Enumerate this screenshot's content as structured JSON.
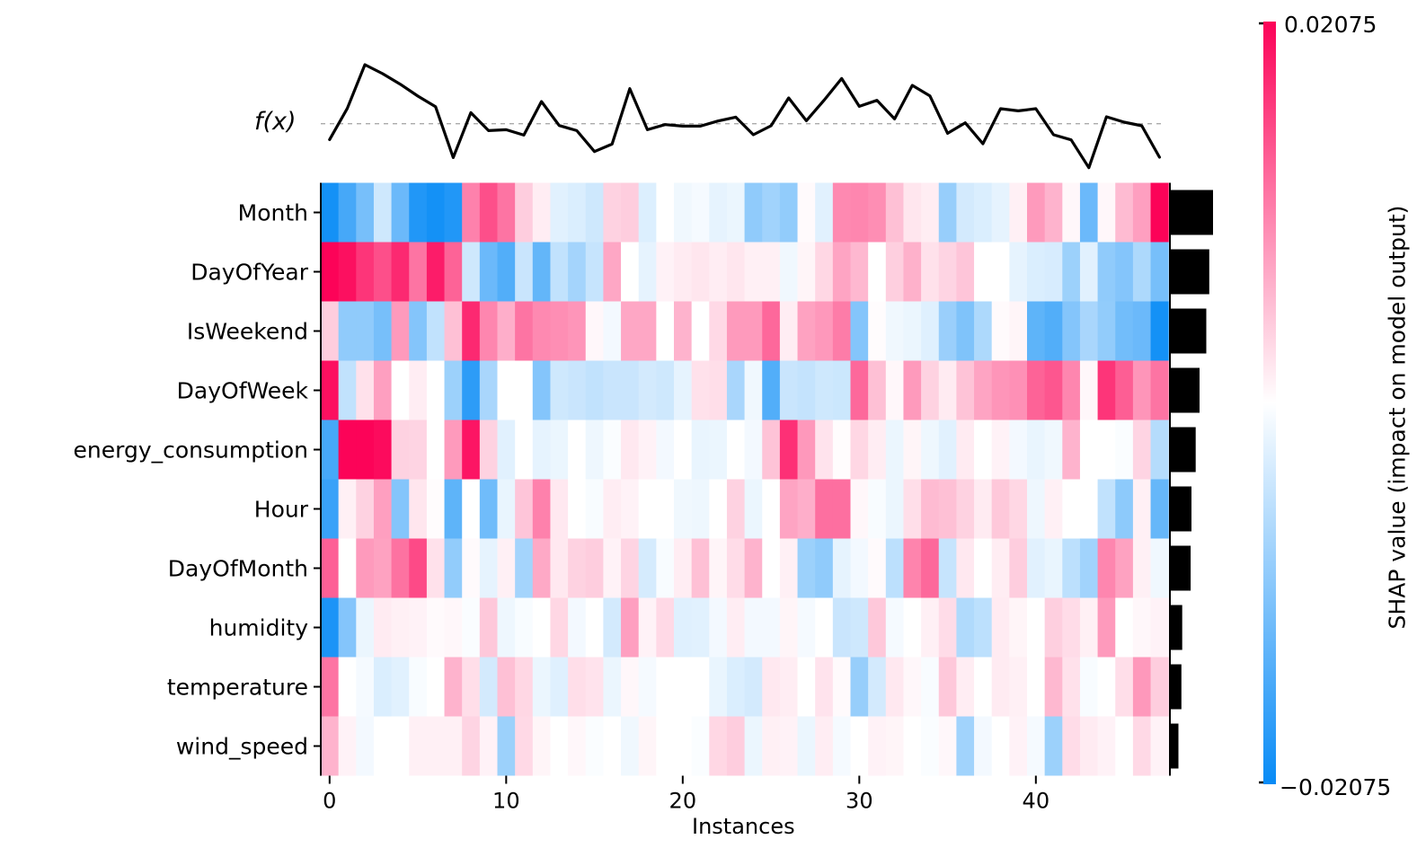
{
  "chart_data": {
    "type": "heatmap",
    "title": "",
    "xlabel": "Instances",
    "x_ticks": [
      0,
      10,
      20,
      30,
      40
    ],
    "n_instances": 48,
    "features": [
      "Month",
      "DayOfYear",
      "IsWeekend",
      "DayOfWeek",
      "energy_consumption",
      "Hour",
      "DayOfMonth",
      "humidity",
      "temperature",
      "wind_speed"
    ],
    "vmin": -0.02075,
    "vmax": 0.02075,
    "values_note": "cell SHAP value = normalized value x vmax (0.02075); colors: positive=pink/red, negative=blue",
    "values_normalized": [
      [
        -0.95,
        -0.75,
        -0.55,
        -0.2,
        -0.6,
        -0.9,
        -0.95,
        -0.9,
        0.5,
        0.7,
        0.55,
        0.2,
        0.07,
        -0.12,
        -0.15,
        -0.2,
        0.18,
        0.2,
        -0.14,
        0.0,
        -0.06,
        -0.04,
        -0.1,
        -0.08,
        -0.45,
        -0.38,
        -0.44,
        0.02,
        -0.12,
        0.47,
        0.48,
        0.45,
        0.25,
        0.1,
        0.07,
        -0.42,
        -0.18,
        -0.15,
        -0.1,
        0.06,
        0.4,
        0.3,
        0.03,
        -0.6,
        0.03,
        0.27,
        0.38,
        1.0
      ],
      [
        1.0,
        0.95,
        0.8,
        0.7,
        0.85,
        0.55,
        0.9,
        0.62,
        -0.2,
        -0.6,
        -0.7,
        -0.22,
        -0.63,
        -0.25,
        -0.37,
        -0.23,
        0.35,
        0.0,
        -0.1,
        0.05,
        0.08,
        0.1,
        0.07,
        0.1,
        0.06,
        0.06,
        -0.06,
        0.04,
        0.16,
        0.36,
        0.28,
        0.0,
        0.19,
        0.31,
        0.12,
        0.17,
        0.23,
        0.0,
        0.0,
        -0.1,
        -0.15,
        -0.16,
        -0.4,
        -0.12,
        -0.45,
        -0.5,
        -0.33,
        -0.55
      ],
      [
        0.2,
        -0.45,
        -0.45,
        -0.55,
        0.4,
        -0.5,
        -0.25,
        0.25,
        0.85,
        0.48,
        0.32,
        0.55,
        0.47,
        0.45,
        0.42,
        0.03,
        -0.05,
        0.35,
        0.35,
        0.0,
        0.3,
        0.0,
        0.15,
        0.4,
        0.4,
        0.6,
        0.07,
        0.37,
        0.41,
        0.52,
        -0.5,
        0.01,
        -0.06,
        -0.08,
        -0.13,
        -0.41,
        -0.52,
        -0.33,
        0.02,
        0.04,
        -0.65,
        -0.7,
        -0.5,
        -0.35,
        -0.44,
        -0.57,
        -0.6,
        -0.95
      ],
      [
        0.95,
        -0.25,
        0.12,
        0.38,
        0.0,
        0.07,
        0.0,
        -0.4,
        -0.85,
        -0.35,
        0.0,
        0.0,
        -0.5,
        -0.2,
        -0.22,
        -0.25,
        -0.22,
        -0.22,
        -0.18,
        -0.2,
        -0.1,
        0.12,
        0.13,
        -0.35,
        -0.06,
        -0.7,
        -0.22,
        -0.24,
        -0.2,
        -0.21,
        0.6,
        0.25,
        0.03,
        0.4,
        0.18,
        0.08,
        0.24,
        0.36,
        0.42,
        0.44,
        0.62,
        0.67,
        0.48,
        0.03,
        0.8,
        0.64,
        0.42,
        0.55
      ],
      [
        -0.75,
        1.0,
        1.0,
        0.97,
        0.18,
        0.17,
        0.0,
        0.4,
        0.93,
        0.18,
        -0.12,
        0.0,
        -0.1,
        -0.08,
        0.0,
        -0.07,
        -0.02,
        0.09,
        0.05,
        -0.05,
        0.0,
        -0.09,
        -0.08,
        0.0,
        -0.05,
        0.24,
        0.82,
        0.41,
        0.11,
        0.01,
        0.16,
        0.07,
        -0.08,
        0.04,
        -0.07,
        -0.12,
        0.08,
        0.0,
        0.05,
        -0.05,
        -0.09,
        -0.06,
        0.3,
        0.0,
        0.0,
        -0.02,
        0.17,
        -0.3
      ],
      [
        -0.8,
        0.06,
        0.18,
        0.38,
        -0.5,
        0.1,
        0.01,
        -0.65,
        0.0,
        -0.58,
        -0.09,
        0.23,
        0.5,
        0.09,
        0.0,
        -0.03,
        0.07,
        0.05,
        0.0,
        0.0,
        -0.06,
        -0.07,
        0.0,
        0.18,
        -0.08,
        0.0,
        0.36,
        0.32,
        0.57,
        0.57,
        0.03,
        -0.03,
        -0.08,
        0.13,
        0.27,
        0.25,
        0.18,
        0.08,
        0.22,
        0.16,
        -0.07,
        0.06,
        0.0,
        0.0,
        -0.25,
        -0.46,
        0.06,
        -0.62
      ],
      [
        0.63,
        0.0,
        0.4,
        0.37,
        0.56,
        0.72,
        0.12,
        -0.44,
        0.02,
        -0.1,
        0.06,
        -0.37,
        0.34,
        0.09,
        0.18,
        0.2,
        0.05,
        0.17,
        -0.17,
        -0.03,
        0.07,
        0.25,
        0.04,
        0.14,
        0.3,
        0.0,
        0.06,
        -0.4,
        -0.45,
        -0.1,
        -0.05,
        0.02,
        -0.27,
        0.49,
        0.6,
        -0.23,
        0.09,
        0.0,
        0.07,
        0.2,
        -0.12,
        -0.09,
        -0.27,
        -0.38,
        0.48,
        0.37,
        0.06,
        -0.06
      ],
      [
        -0.92,
        -0.5,
        -0.08,
        0.08,
        0.06,
        0.05,
        0.02,
        0.03,
        -0.02,
        0.22,
        -0.07,
        -0.03,
        0.0,
        0.16,
        -0.05,
        0.0,
        -0.18,
        0.38,
        0.05,
        0.15,
        -0.13,
        -0.12,
        -0.05,
        0.07,
        -0.05,
        -0.05,
        0.04,
        -0.04,
        0.0,
        -0.22,
        -0.2,
        0.22,
        -0.04,
        0.0,
        0.06,
        0.14,
        -0.32,
        -0.27,
        0.08,
        0.04,
        0.0,
        0.19,
        0.14,
        0.06,
        0.4,
        0.0,
        0.03,
        0.05
      ],
      [
        0.55,
        0.0,
        -0.04,
        -0.15,
        -0.12,
        -0.03,
        0.0,
        0.3,
        0.13,
        -0.18,
        0.25,
        0.16,
        -0.08,
        -0.13,
        0.13,
        0.11,
        -0.08,
        0.03,
        -0.04,
        0.0,
        0.0,
        0.0,
        -0.09,
        -0.15,
        -0.18,
        0.09,
        0.07,
        0.0,
        0.11,
        0.02,
        -0.42,
        -0.18,
        0.09,
        0.03,
        -0.03,
        0.22,
        0.07,
        0.0,
        0.08,
        0.06,
        0.0,
        0.28,
        0.12,
        -0.03,
        0.0,
        0.13,
        0.41,
        0.2
      ],
      [
        0.3,
        0.05,
        -0.05,
        0.0,
        0.0,
        0.06,
        0.06,
        0.06,
        0.17,
        0.05,
        -0.4,
        0.15,
        0.04,
        0.0,
        0.03,
        -0.02,
        0.0,
        -0.06,
        0.04,
        0.0,
        0.0,
        -0.02,
        0.16,
        0.2,
        -0.08,
        0.06,
        0.05,
        -0.08,
        0.07,
        -0.04,
        0.0,
        0.05,
        0.04,
        0.0,
        -0.02,
        0.03,
        -0.38,
        -0.05,
        0.0,
        0.05,
        -0.04,
        -0.4,
        0.14,
        0.08,
        0.05,
        0.0,
        0.15,
        0.05
      ]
    ],
    "fx_line": {
      "label": "f(x)",
      "note": "model output per instance, relative offset above dashed mean line (arbitrary units)",
      "values_relative": [
        -17.7,
        17.0,
        65.7,
        55.7,
        44.0,
        30.7,
        19.0,
        -37.7,
        12.3,
        -7.7,
        -6.7,
        -12.7,
        24.7,
        -2.0,
        -7.7,
        -31.0,
        -22.7,
        39.0,
        -6.7,
        -1.0,
        -2.7,
        -2.7,
        3.0,
        7.3,
        -12.3,
        -2.3,
        28.7,
        3.3,
        26.0,
        50.3,
        19.3,
        26.0,
        5.3,
        42.7,
        31.0,
        -10.7,
        1.0,
        -22.3,
        16.7,
        14.3,
        16.7,
        -12.3,
        -18.0,
        -49.0,
        7.7,
        1.7,
        -2.3,
        -37.3
      ]
    },
    "importance_bars_relative": [
      1.0,
      0.91,
      0.84,
      0.68,
      0.59,
      0.49,
      0.47,
      0.27,
      0.25,
      0.18
    ],
    "colorbar": {
      "top_label": "0.02075",
      "bottom_label": "−0.02075",
      "label": "SHAP value (impact on model output)",
      "color_positive": "#fc0358",
      "color_negative": "#088bf6",
      "color_mid": "#ffffff"
    },
    "colors": {
      "line": "#000000",
      "baseline_dash": "#aaaaaa",
      "bars": "#000000",
      "text": "#000000"
    }
  }
}
